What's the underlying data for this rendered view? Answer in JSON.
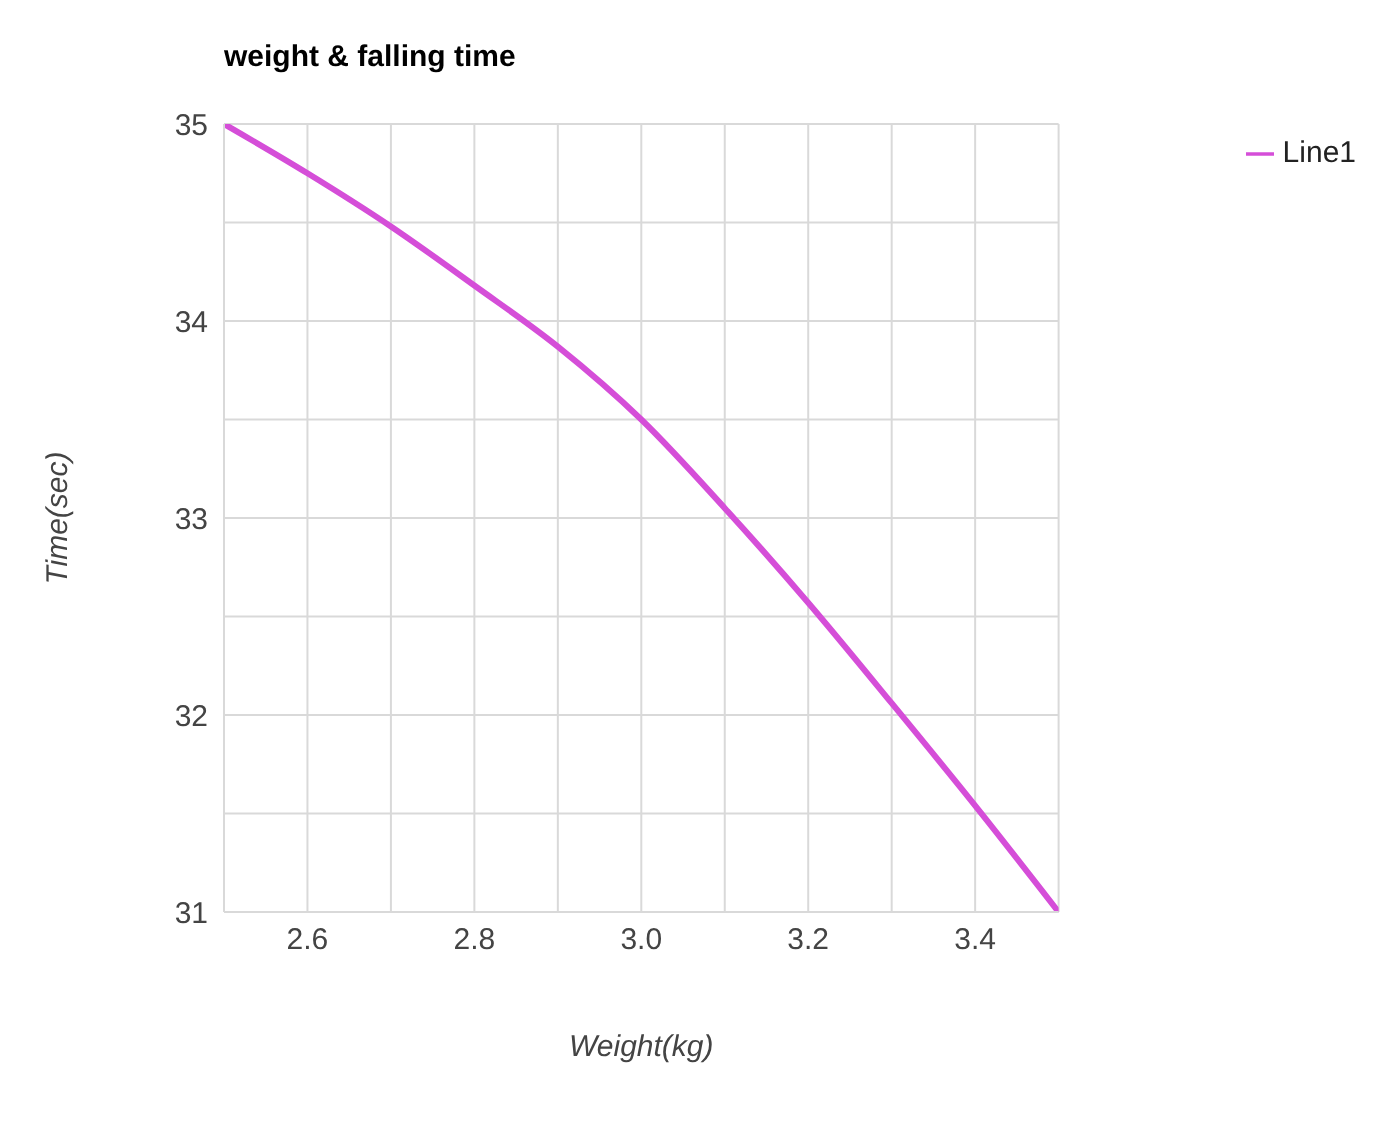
{
  "chart_data": {
    "type": "line",
    "title": "weight & falling time",
    "xlabel": "Weight(kg)",
    "ylabel": "Time(sec)",
    "x": [
      2.5,
      2.6,
      2.7,
      2.8,
      2.9,
      3.0,
      3.1,
      3.2,
      3.3,
      3.4,
      3.5
    ],
    "series": [
      {
        "name": "Line1",
        "color": "#d54ed8",
        "values": [
          35,
          34.75,
          34.48,
          34.18,
          33.87,
          33.5,
          33.05,
          32.57,
          32.06,
          31.54,
          31
        ]
      }
    ],
    "xlim": [
      2.5,
      3.5
    ],
    "xticks": [
      {
        "value": 2.5,
        "label": null
      },
      2.6,
      {
        "value": 2.7,
        "label": null
      },
      2.8,
      {
        "value": 2.9,
        "label": null
      },
      {
        "value": 3.0,
        "label": "3.0"
      },
      {
        "value": 3.1,
        "label": null
      },
      3.2,
      {
        "value": 3.3,
        "label": null
      },
      3.4,
      {
        "value": 3.5,
        "label": null
      }
    ],
    "ylim": [
      31,
      35
    ],
    "yticks": [
      31,
      {
        "value": 31.5,
        "label": null
      },
      32,
      {
        "value": 32.5,
        "label": null
      },
      33,
      {
        "value": 33.5,
        "label": null
      },
      34,
      {
        "value": 34.5,
        "label": null
      },
      35
    ],
    "grid": true,
    "legend": "top right",
    "marker": "none",
    "line_style": "solid"
  }
}
